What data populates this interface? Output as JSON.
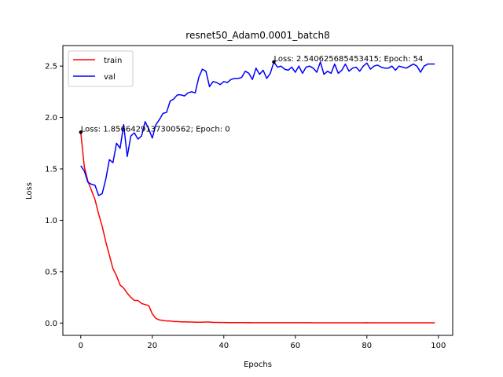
{
  "chart_data": {
    "type": "line",
    "title": "resnet50_Adam0.0001_batch8",
    "xlabel": "Epochs",
    "ylabel": "Loss",
    "xlim": [
      -5,
      104
    ],
    "ylim": [
      -0.12,
      2.7
    ],
    "xticks": [
      0,
      20,
      40,
      60,
      80,
      100
    ],
    "yticks": [
      0.0,
      0.5,
      1.0,
      1.5,
      2.0,
      2.5
    ],
    "xtick_labels": [
      "0",
      "20",
      "40",
      "60",
      "80",
      "100"
    ],
    "ytick_labels": [
      "0.0",
      "0.5",
      "1.0",
      "1.5",
      "2.0",
      "2.5"
    ],
    "grid": false,
    "legend_position": "top-left",
    "series": [
      {
        "name": "train",
        "color": "#ff0000",
        "x": [
          0,
          1,
          2,
          3,
          4,
          5,
          6,
          7,
          8,
          9,
          10,
          11,
          12,
          13,
          14,
          15,
          16,
          17,
          18,
          19,
          20,
          21,
          22,
          23,
          24,
          25,
          26,
          27,
          28,
          29,
          30,
          31,
          32,
          33,
          34,
          35,
          36,
          37,
          38,
          39,
          40,
          41,
          42,
          43,
          44,
          45,
          46,
          47,
          48,
          49,
          50,
          51,
          52,
          53,
          54,
          55,
          56,
          57,
          58,
          59,
          60,
          61,
          62,
          63,
          64,
          65,
          66,
          67,
          68,
          69,
          70,
          71,
          72,
          73,
          74,
          75,
          76,
          77,
          78,
          79,
          80,
          81,
          82,
          83,
          84,
          85,
          86,
          87,
          88,
          89,
          90,
          91,
          92,
          93,
          94,
          95,
          96,
          97,
          98,
          99
        ],
        "values": [
          1.857,
          1.52,
          1.38,
          1.29,
          1.2,
          1.06,
          0.94,
          0.79,
          0.66,
          0.53,
          0.46,
          0.37,
          0.34,
          0.29,
          0.25,
          0.22,
          0.22,
          0.19,
          0.18,
          0.17,
          0.09,
          0.045,
          0.03,
          0.025,
          0.02,
          0.02,
          0.015,
          0.015,
          0.012,
          0.012,
          0.01,
          0.01,
          0.008,
          0.008,
          0.008,
          0.01,
          0.01,
          0.006,
          0.006,
          0.005,
          0.005,
          0.004,
          0.004,
          0.004,
          0.004,
          0.004,
          0.003,
          0.004,
          0.003,
          0.003,
          0.003,
          0.003,
          0.003,
          0.003,
          0.003,
          0.003,
          0.003,
          0.003,
          0.003,
          0.003,
          0.003,
          0.003,
          0.003,
          0.003,
          0.003,
          0.002,
          0.002,
          0.002,
          0.002,
          0.002,
          0.002,
          0.002,
          0.002,
          0.002,
          0.002,
          0.002,
          0.002,
          0.002,
          0.002,
          0.002,
          0.003,
          0.002,
          0.002,
          0.002,
          0.002,
          0.002,
          0.002,
          0.002,
          0.002,
          0.002,
          0.002,
          0.002,
          0.002,
          0.002,
          0.002,
          0.002,
          0.002,
          0.002,
          0.002,
          0.002
        ]
      },
      {
        "name": "val",
        "color": "#0000ff",
        "x": [
          0,
          1,
          2,
          3,
          4,
          5,
          6,
          7,
          8,
          9,
          10,
          11,
          12,
          13,
          14,
          15,
          16,
          17,
          18,
          19,
          20,
          21,
          22,
          23,
          24,
          25,
          26,
          27,
          28,
          29,
          30,
          31,
          32,
          33,
          34,
          35,
          36,
          37,
          38,
          39,
          40,
          41,
          42,
          43,
          44,
          45,
          46,
          47,
          48,
          49,
          50,
          51,
          52,
          53,
          54,
          55,
          56,
          57,
          58,
          59,
          60,
          61,
          62,
          63,
          64,
          65,
          66,
          67,
          68,
          69,
          70,
          71,
          72,
          73,
          74,
          75,
          76,
          77,
          78,
          79,
          80,
          81,
          82,
          83,
          84,
          85,
          86,
          87,
          88,
          89,
          90,
          91,
          92,
          93,
          94,
          95,
          96,
          97,
          98,
          99
        ],
        "values": [
          1.53,
          1.48,
          1.37,
          1.35,
          1.34,
          1.24,
          1.26,
          1.4,
          1.59,
          1.56,
          1.75,
          1.7,
          1.93,
          1.62,
          1.82,
          1.85,
          1.79,
          1.82,
          1.96,
          1.89,
          1.8,
          1.93,
          1.98,
          2.04,
          2.05,
          2.16,
          2.18,
          2.22,
          2.22,
          2.21,
          2.24,
          2.25,
          2.24,
          2.39,
          2.47,
          2.45,
          2.3,
          2.35,
          2.34,
          2.32,
          2.35,
          2.34,
          2.37,
          2.38,
          2.38,
          2.39,
          2.45,
          2.43,
          2.37,
          2.48,
          2.42,
          2.46,
          2.38,
          2.43,
          2.54,
          2.49,
          2.5,
          2.47,
          2.46,
          2.49,
          2.44,
          2.5,
          2.43,
          2.49,
          2.5,
          2.48,
          2.44,
          2.54,
          2.42,
          2.45,
          2.43,
          2.52,
          2.43,
          2.46,
          2.52,
          2.45,
          2.48,
          2.49,
          2.45,
          2.5,
          2.53,
          2.47,
          2.5,
          2.51,
          2.49,
          2.48,
          2.48,
          2.5,
          2.46,
          2.5,
          2.49,
          2.48,
          2.5,
          2.52,
          2.5,
          2.44,
          2.5,
          2.52,
          2.52,
          2.52
        ]
      }
    ],
    "annotations": [
      {
        "text": "Loss: 1.8566429137300562; Epoch: 0",
        "x": 0,
        "y": 1.857
      },
      {
        "text": "Loss: 2.540625685453415; Epoch: 54",
        "x": 54,
        "y": 2.5406
      }
    ]
  }
}
